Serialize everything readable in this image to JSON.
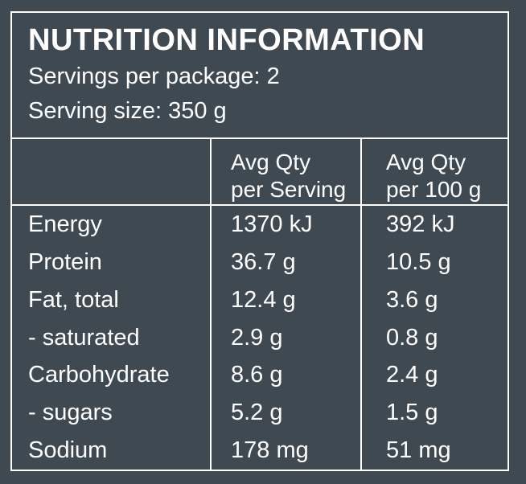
{
  "colors": {
    "background": "#3E4952",
    "foreground": "#FFFFFF"
  },
  "panel": {
    "title": "NUTRITION INFORMATION",
    "servings_line": "Servings per package: 2",
    "serving_size_line": "Serving size: 350 g"
  },
  "table": {
    "header": {
      "nutrient": "",
      "per_serving": "Avg Qty\nper Serving",
      "per_100g": "Avg Qty\nper 100 g"
    },
    "rows": [
      {
        "label": "Energy",
        "per_serving": "1370 kJ",
        "per_100g": "392 kJ"
      },
      {
        "label": "Protein",
        "per_serving": "36.7 g",
        "per_100g": "10.5 g"
      },
      {
        "label": "Fat, total",
        "per_serving": "12.4 g",
        "per_100g": "3.6 g"
      },
      {
        "label": "- saturated",
        "per_serving": "2.9 g",
        "per_100g": "0.8 g"
      },
      {
        "label": "Carbohydrate",
        "per_serving": "8.6 g",
        "per_100g": "2.4 g"
      },
      {
        "label": "- sugars",
        "per_serving": "5.2 g",
        "per_100g": "1.5 g"
      },
      {
        "label": "Sodium",
        "per_serving": "178 mg",
        "per_100g": "51 mg"
      }
    ]
  }
}
